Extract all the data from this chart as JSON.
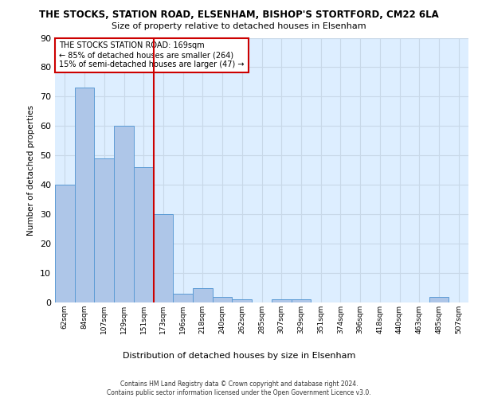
{
  "title1": "THE STOCKS, STATION ROAD, ELSENHAM, BISHOP'S STORTFORD, CM22 6LA",
  "title2": "Size of property relative to detached houses in Elsenham",
  "xlabel": "Distribution of detached houses by size in Elsenham",
  "ylabel": "Number of detached properties",
  "categories": [
    "62sqm",
    "84sqm",
    "107sqm",
    "129sqm",
    "151sqm",
    "173sqm",
    "196sqm",
    "218sqm",
    "240sqm",
    "262sqm",
    "285sqm",
    "307sqm",
    "329sqm",
    "351sqm",
    "374sqm",
    "396sqm",
    "418sqm",
    "440sqm",
    "463sqm",
    "485sqm",
    "507sqm"
  ],
  "values": [
    40,
    73,
    49,
    60,
    46,
    30,
    3,
    5,
    2,
    1,
    0,
    1,
    1,
    0,
    0,
    0,
    0,
    0,
    0,
    2,
    0
  ],
  "bar_color": "#aec6e8",
  "bar_edge_color": "#5b9bd5",
  "vline_x": 4.5,
  "vline_color": "#cc0000",
  "ylim": [
    0,
    90
  ],
  "yticks": [
    0,
    10,
    20,
    30,
    40,
    50,
    60,
    70,
    80,
    90
  ],
  "annotation_line1": "THE STOCKS STATION ROAD: 169sqm",
  "annotation_line2": "← 85% of detached houses are smaller (264)",
  "annotation_line3": "15% of semi-detached houses are larger (47) →",
  "annotation_box_color": "#cc0000",
  "grid_color": "#c8d8e8",
  "bg_color": "#ddeeff",
  "footer1": "Contains HM Land Registry data © Crown copyright and database right 2024.",
  "footer2": "Contains public sector information licensed under the Open Government Licence v3.0."
}
